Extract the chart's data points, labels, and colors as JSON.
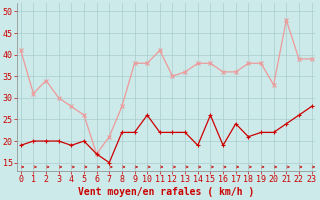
{
  "x": [
    0,
    1,
    2,
    3,
    4,
    5,
    6,
    7,
    8,
    9,
    10,
    11,
    12,
    13,
    14,
    15,
    16,
    17,
    18,
    19,
    20,
    21,
    22,
    23
  ],
  "wind_avg": [
    19,
    20,
    20,
    20,
    19,
    20,
    17,
    15,
    22,
    22,
    26,
    22,
    22,
    22,
    19,
    26,
    19,
    24,
    21,
    22,
    22,
    24,
    26,
    28
  ],
  "wind_gust": [
    41,
    31,
    34,
    30,
    28,
    26,
    17,
    21,
    28,
    38,
    38,
    41,
    35,
    36,
    38,
    38,
    36,
    36,
    38,
    38,
    33,
    48,
    39,
    39
  ],
  "bg_color": "#cceaea",
  "grid_color": "#aacccc",
  "line_avg_color": "#cc0000",
  "line_gust_color": "#ee9999",
  "arrow_color": "#cc0000",
  "xlabel": "Vent moyen/en rafales ( km/h )",
  "xlabel_color": "#cc0000",
  "xlabel_fontsize": 7,
  "tick_color": "#cc0000",
  "tick_fontsize": 6,
  "ytick_labels": [
    "15",
    "20",
    "25",
    "30",
    "35",
    "40",
    "45",
    "50"
  ],
  "ytick_vals": [
    15,
    20,
    25,
    30,
    35,
    40,
    45,
    50
  ],
  "ylim": [
    13,
    52
  ],
  "xlim": [
    -0.3,
    23.3
  ]
}
